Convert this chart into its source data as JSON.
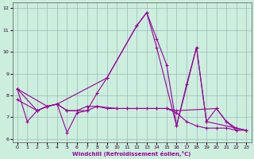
{
  "xlabel": "Windchill (Refroidissement éolien,°C)",
  "background_color": "#cceedd",
  "grid_color": "#99bbbb",
  "line_color": "#990099",
  "xlim_min": -0.5,
  "xlim_max": 23.5,
  "ylim_min": 5.85,
  "ylim_max": 12.25,
  "yticks": [
    6,
    7,
    8,
    9,
    10,
    11,
    12
  ],
  "xticks": [
    0,
    1,
    2,
    3,
    4,
    5,
    6,
    7,
    8,
    9,
    10,
    11,
    12,
    13,
    14,
    15,
    16,
    17,
    18,
    19,
    20,
    21,
    22,
    23
  ],
  "line1_x": [
    0,
    1,
    2,
    3,
    4,
    5,
    6,
    7,
    8,
    9,
    12,
    13,
    14,
    15,
    16,
    17,
    18,
    19,
    20,
    21,
    22
  ],
  "line1_y": [
    8.3,
    6.8,
    7.3,
    7.5,
    7.6,
    6.3,
    7.2,
    7.3,
    8.1,
    8.8,
    11.2,
    11.8,
    10.6,
    9.4,
    6.6,
    8.5,
    10.2,
    6.8,
    7.4,
    6.8,
    6.4
  ],
  "line2_x": [
    0,
    3,
    4,
    9,
    12,
    13,
    14,
    16,
    18,
    19,
    23
  ],
  "line2_y": [
    8.3,
    7.5,
    7.6,
    8.8,
    11.2,
    11.8,
    10.2,
    6.6,
    10.2,
    6.8,
    6.4
  ],
  "line3_x": [
    0,
    2,
    3,
    4,
    5,
    6,
    7,
    8,
    10,
    11,
    14,
    15,
    16,
    20,
    21,
    22,
    23
  ],
  "line3_y": [
    8.3,
    7.3,
    7.5,
    7.6,
    7.3,
    7.3,
    7.5,
    7.5,
    7.4,
    7.4,
    7.4,
    7.4,
    7.3,
    7.4,
    6.8,
    6.5,
    6.4
  ],
  "line4_x": [
    0,
    2,
    3,
    4,
    5,
    7,
    8,
    9,
    10,
    11,
    12,
    13,
    14,
    15,
    16,
    17,
    18,
    19,
    20,
    21,
    22,
    23
  ],
  "line4_y": [
    7.8,
    7.3,
    7.5,
    7.6,
    7.3,
    7.3,
    7.5,
    7.4,
    7.4,
    7.4,
    7.4,
    7.4,
    7.4,
    7.4,
    7.2,
    6.8,
    6.6,
    6.5,
    6.5,
    6.5,
    6.4,
    6.4
  ]
}
